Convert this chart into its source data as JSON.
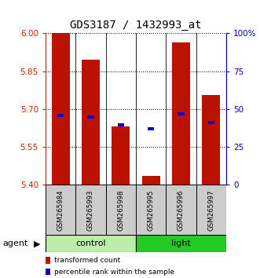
{
  "title": "GDS3187 / 1432993_at",
  "samples": [
    "GSM265984",
    "GSM265993",
    "GSM265998",
    "GSM265995",
    "GSM265996",
    "GSM265997"
  ],
  "red_bar_tops": [
    6.0,
    5.895,
    5.63,
    5.435,
    5.965,
    5.755
  ],
  "blue_square_values": [
    5.675,
    5.668,
    5.638,
    5.622,
    5.68,
    5.648
  ],
  "y_min": 5.4,
  "y_max": 6.0,
  "y_ticks_left": [
    5.4,
    5.55,
    5.7,
    5.85,
    6.0
  ],
  "y_ticks_right": [
    0,
    25,
    50,
    75,
    100
  ],
  "y_ticks_right_labels": [
    "0",
    "25",
    "50",
    "75",
    "100%"
  ],
  "groups": [
    {
      "label": "control",
      "indices": [
        0,
        1,
        2
      ],
      "color": "#AAEEA A"
    },
    {
      "label": "light",
      "indices": [
        3,
        4,
        5
      ],
      "color": "#22DD22"
    }
  ],
  "control_color": "#BBEEAA",
  "light_color": "#22CC22",
  "bar_color": "#BB1100",
  "square_color": "#0000CC",
  "left_axis_color": "#CC2200",
  "right_axis_color": "#0000BB",
  "sample_box_color": "#CCCCCC",
  "agent_label": "agent",
  "legend_items": [
    {
      "color": "#BB1100",
      "label": "transformed count"
    },
    {
      "color": "#0000CC",
      "label": "percentile rank within the sample"
    }
  ]
}
